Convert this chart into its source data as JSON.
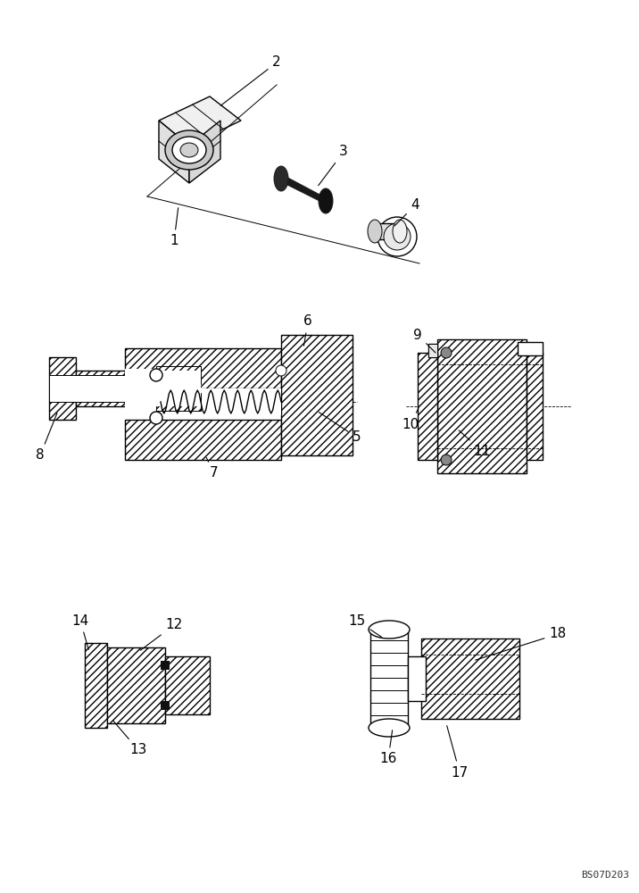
{
  "bg_color": "#ffffff",
  "line_color": "#000000",
  "watermark": "BS07D203",
  "fig_w": 7.16,
  "fig_h": 10.0,
  "dpi": 100
}
